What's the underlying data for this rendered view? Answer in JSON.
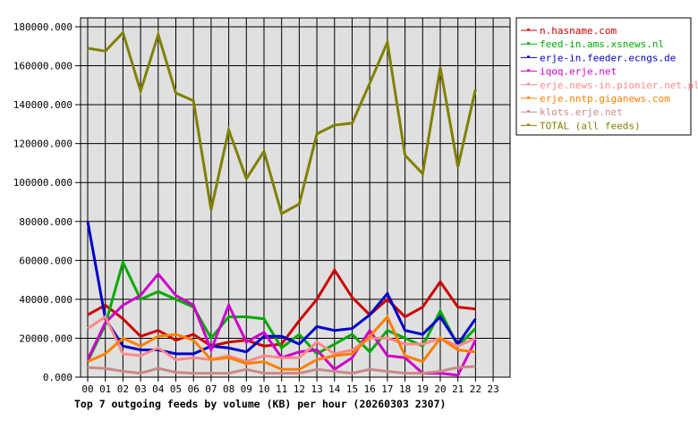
{
  "chart_data": {
    "type": "line",
    "title": "Top 7 outgoing feeds by volume (KB) per hour (20260303 2307)",
    "xlabel": "",
    "ylabel": "",
    "ylim": [
      0,
      180000
    ],
    "grid": true,
    "legend_position": "right",
    "x": [
      "00",
      "01",
      "02",
      "03",
      "04",
      "05",
      "06",
      "07",
      "08",
      "09",
      "10",
      "11",
      "12",
      "13",
      "14",
      "15",
      "16",
      "17",
      "18",
      "19",
      "20",
      "21",
      "22",
      "23"
    ],
    "yticks": [
      "0.000",
      "20000.000",
      "40000.000",
      "60000.000",
      "80000.000",
      "100000.000",
      "120000.000",
      "140000.000",
      "160000.000",
      "180000.000"
    ],
    "series": [
      {
        "name": "n.hasname.com",
        "color": "#cc0000",
        "values": [
          32000,
          37000,
          30000,
          21000,
          24000,
          19000,
          22000,
          16000,
          18000,
          19000,
          16000,
          17000,
          29000,
          40000,
          55000,
          41000,
          32000,
          40000,
          31000,
          36000,
          49000,
          36000,
          35000
        ]
      },
      {
        "name": "feed-in.ams.xsnews.nl",
        "color": "#00aa00",
        "values": [
          8000,
          27000,
          59000,
          40000,
          44000,
          40000,
          36000,
          20000,
          31000,
          31000,
          30000,
          15000,
          22000,
          12000,
          17000,
          22000,
          13000,
          24000,
          20000,
          16000,
          34000,
          16000,
          25000
        ]
      },
      {
        "name": "erje-in.feeder.ecngs.de",
        "color": "#0000cc",
        "values": [
          80000,
          30000,
          16000,
          14000,
          14000,
          12000,
          12000,
          16000,
          15000,
          13000,
          21000,
          21000,
          17000,
          26000,
          24000,
          25000,
          32000,
          43000,
          24000,
          22000,
          31000,
          17000,
          30000
        ]
      },
      {
        "name": "iqoq.erje.net",
        "color": "#cc00cc",
        "values": [
          9000,
          28000,
          37000,
          42000,
          53000,
          42000,
          37000,
          14000,
          37000,
          18000,
          23000,
          10000,
          13000,
          14000,
          4000,
          10000,
          24000,
          11000,
          10000,
          2000,
          2000,
          1000,
          19000
        ]
      },
      {
        "name": "erje.news-in.pionier.net.pl",
        "color": "#ff8888",
        "values": [
          25000,
          31000,
          12000,
          11000,
          15000,
          9000,
          10000,
          9000,
          11000,
          8000,
          11000,
          10000,
          10000,
          18000,
          12000,
          14000,
          20000,
          20000,
          17000,
          17000,
          20000,
          16000,
          20000
        ]
      },
      {
        "name": "erje.nntp.giganews.com",
        "color": "#ff8000",
        "values": [
          8000,
          12000,
          20000,
          16000,
          21000,
          22000,
          19000,
          9000,
          10000,
          7000,
          8000,
          4000,
          4000,
          9000,
          11000,
          12000,
          21000,
          31000,
          11000,
          8000,
          20000,
          14000,
          13000
        ]
      },
      {
        "name": "klots.erje.net",
        "color": "#cc8888",
        "values": [
          5000,
          4500,
          3000,
          2000,
          4500,
          2500,
          2000,
          2000,
          2000,
          4000,
          2000,
          2000,
          2000,
          4000,
          3000,
          2000,
          4000,
          3000,
          2000,
          2000,
          3000,
          5000,
          5500
        ]
      },
      {
        "name": "TOTAL (all feeds)",
        "color": "#808000",
        "values": [
          169000,
          167500,
          177000,
          147000,
          176000,
          146000,
          142000,
          86000,
          127000,
          102000,
          116000,
          84000,
          89000,
          125000,
          129500,
          130500,
          151000,
          172000,
          114000,
          104500,
          159000,
          108000,
          148000
        ]
      }
    ]
  },
  "legend": {
    "items": [
      {
        "label": "n.hasname.com",
        "color": "#cc0000"
      },
      {
        "label": "feed-in.ams.xsnews.nl",
        "color": "#00aa00"
      },
      {
        "label": "erje-in.feeder.ecngs.de",
        "color": "#0000cc"
      },
      {
        "label": "iqoq.erje.net",
        "color": "#cc00cc"
      },
      {
        "label": "erje.news-in.pionier.net.pl",
        "color": "#ff8888"
      },
      {
        "label": "erje.nntp.giganews.com",
        "color": "#ff8000"
      },
      {
        "label": "klots.erje.net",
        "color": "#cc8888"
      },
      {
        "label": "TOTAL (all feeds)",
        "color": "#808000"
      }
    ]
  },
  "colors": {
    "plot_background": "#e0e0e0",
    "grid": "#000000",
    "page_background": "#ffffff"
  }
}
